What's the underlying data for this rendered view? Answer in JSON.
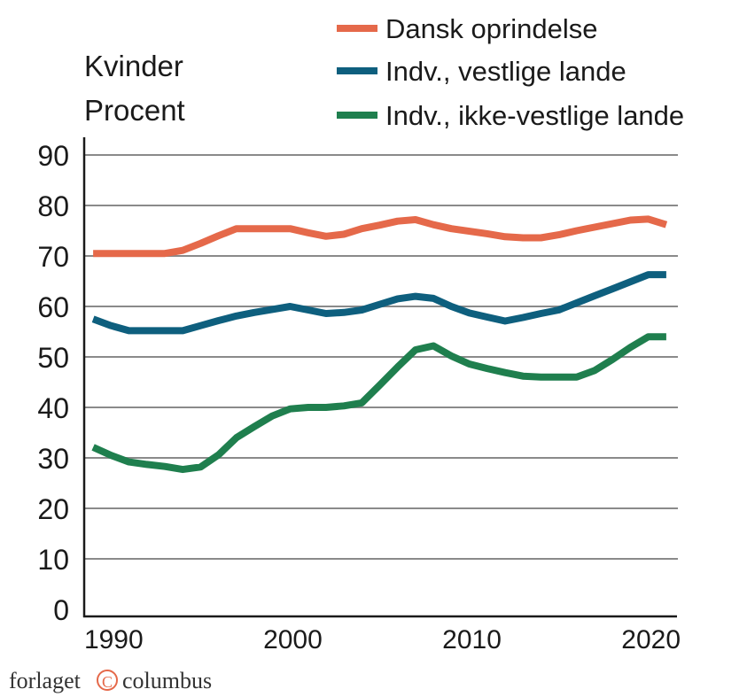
{
  "chart_data": {
    "type": "line",
    "title": "Kvinder",
    "ylabel": "Procent",
    "xlabel": "",
    "ylim": [
      0,
      90
    ],
    "xlim": [
      1988.5,
      2021.5
    ],
    "yticks": [
      0,
      10,
      20,
      30,
      40,
      50,
      60,
      70,
      80,
      90
    ],
    "xticks": [
      1990,
      2000,
      2010,
      2020
    ],
    "grid": true,
    "legend_position": "top-right",
    "x": [
      1989,
      1990,
      1991,
      1992,
      1993,
      1994,
      1995,
      1996,
      1997,
      1998,
      1999,
      2000,
      2001,
      2002,
      2003,
      2004,
      2005,
      2006,
      2007,
      2008,
      2009,
      2010,
      2011,
      2012,
      2013,
      2014,
      2015,
      2016,
      2017,
      2018,
      2019,
      2020,
      2021
    ],
    "series": [
      {
        "name": "Dansk oprindelse",
        "color": "#E5694A",
        "values": [
          70.5,
          70.5,
          70.5,
          70.5,
          70.5,
          71.1,
          72.5,
          74.0,
          75.4,
          75.4,
          75.4,
          75.4,
          74.6,
          73.9,
          74.3,
          75.4,
          76.1,
          76.9,
          77.2,
          76.2,
          75.4,
          74.9,
          74.4,
          73.8,
          73.6,
          73.6,
          74.2,
          75.0,
          75.7,
          76.4,
          77.1,
          77.3,
          76.2
        ]
      },
      {
        "name": "Indv., vestlige lande",
        "color": "#0E5F7E",
        "values": [
          57.5,
          56.2,
          55.2,
          55.2,
          55.2,
          55.2,
          56.2,
          57.2,
          58.1,
          58.8,
          59.4,
          60.0,
          59.3,
          58.6,
          58.8,
          59.3,
          60.4,
          61.5,
          62.0,
          61.6,
          60.0,
          58.7,
          57.9,
          57.1,
          57.8,
          58.6,
          59.3,
          60.7,
          62.1,
          63.5,
          64.9,
          66.3,
          66.3
        ]
      },
      {
        "name": "Indv., ikke-vestlige lande",
        "color": "#1F7F4E",
        "values": [
          32.1,
          30.5,
          29.2,
          28.7,
          28.3,
          27.7,
          28.2,
          30.6,
          34.0,
          36.2,
          38.3,
          39.7,
          40.0,
          40.0,
          40.3,
          40.9,
          44.4,
          48.0,
          51.4,
          52.2,
          50.2,
          48.6,
          47.7,
          46.9,
          46.2,
          46.0,
          46.0,
          46.0,
          47.3,
          49.5,
          51.9,
          54.0,
          54.0
        ]
      }
    ]
  },
  "footer": {
    "logo_text": "forlaget © columbus"
  }
}
